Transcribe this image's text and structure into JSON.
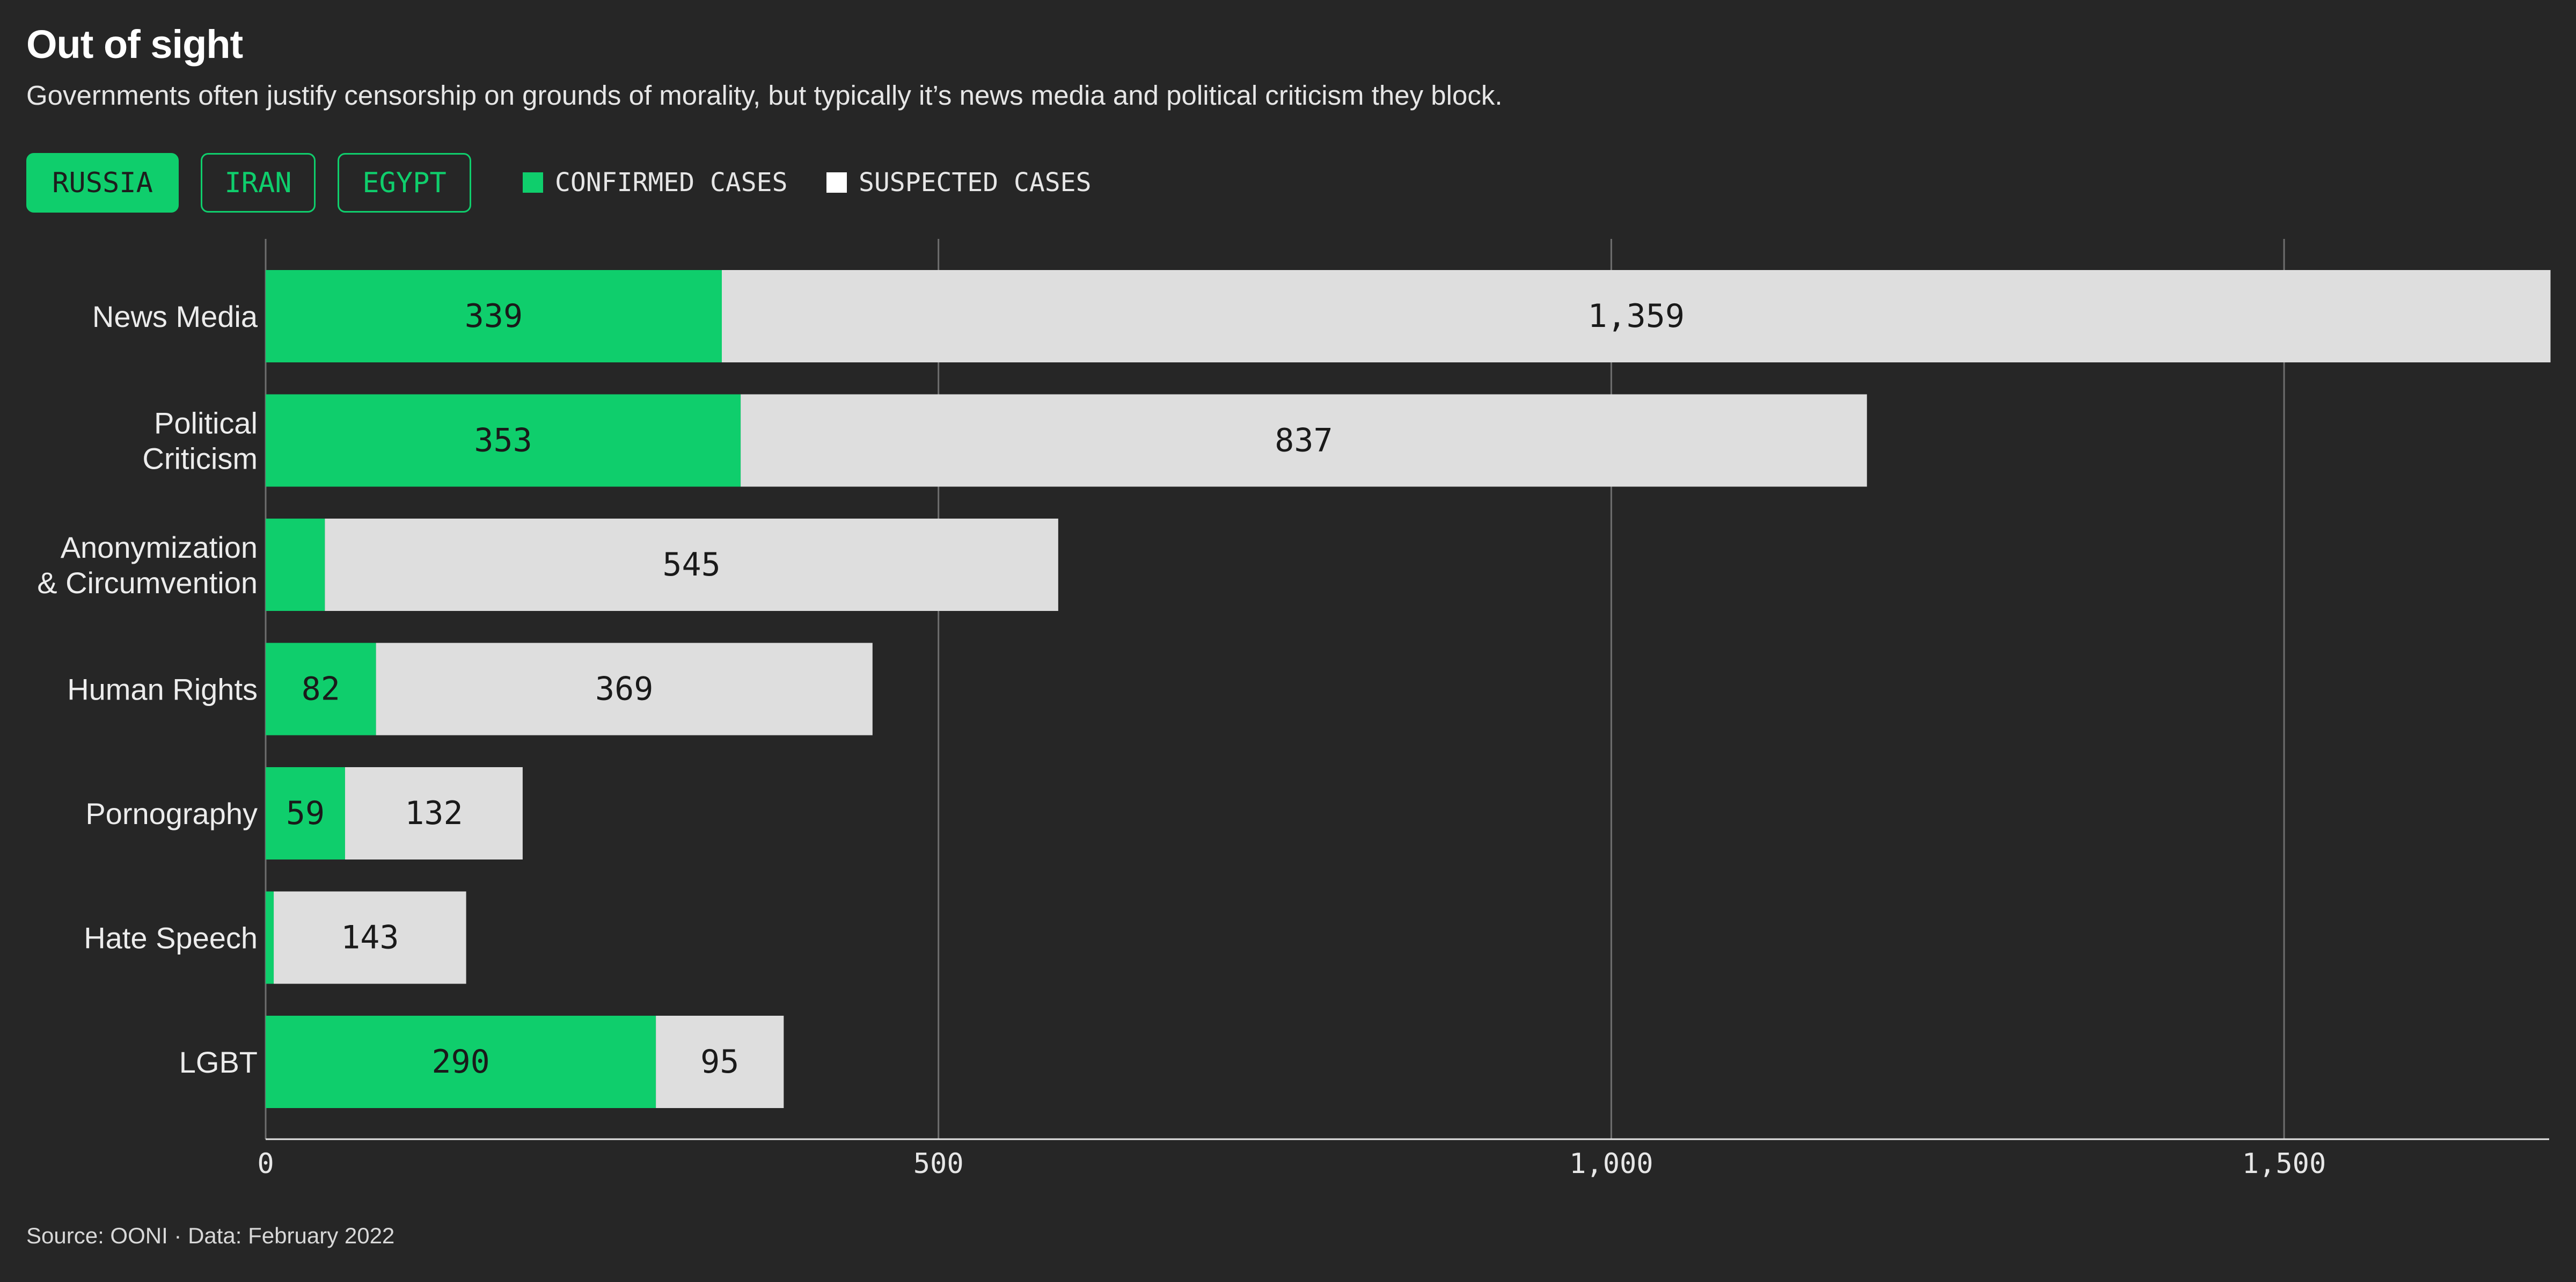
{
  "header": {
    "title": "Out of sight",
    "subtitle": "Governments often justify censorship on grounds of morality, but typically it’s news media and political criticism they block."
  },
  "tabs": [
    {
      "label": "RUSSIA",
      "active": true
    },
    {
      "label": "IRAN",
      "active": false
    },
    {
      "label": "EGYPT",
      "active": false
    }
  ],
  "legend": {
    "confirmed": "CONFIRMED CASES",
    "suspected": "SUSPECTED CASES"
  },
  "colors": {
    "background": "#262626",
    "confirmed": "#0fce6c",
    "suspected": "#dedede",
    "grid": "#6e6e6e",
    "axis": "#e6e6e6"
  },
  "footer": {
    "source": "Source: OONI · Data: February 2022"
  },
  "chart_data": {
    "type": "bar",
    "orientation": "horizontal",
    "stacked": true,
    "categories": [
      [
        "News Media"
      ],
      [
        "Political",
        "Criticism"
      ],
      [
        "Anonymization",
        "& Circumvention"
      ],
      [
        "Human Rights"
      ],
      [
        "Pornography"
      ],
      [
        "Hate Speech"
      ],
      [
        "LGBT"
      ]
    ],
    "series": [
      {
        "name": "CONFIRMED CASES",
        "key": "confirmed",
        "values": [
          339,
          353,
          44,
          82,
          59,
          6,
          290
        ],
        "labels": [
          "339",
          "353",
          "",
          "82",
          "59",
          "",
          "290"
        ]
      },
      {
        "name": "SUSPECTED CASES",
        "key": "suspected",
        "values": [
          1359,
          837,
          545,
          369,
          132,
          143,
          95
        ],
        "labels": [
          "1,359",
          "837",
          "545",
          "369",
          "132",
          "143",
          "95"
        ]
      }
    ],
    "xlim": [
      0,
      1697
    ],
    "xticks": [
      0,
      500,
      1000,
      1500
    ],
    "xtick_labels": [
      "0",
      "500",
      "1,000",
      "1,500"
    ],
    "grid": true
  }
}
